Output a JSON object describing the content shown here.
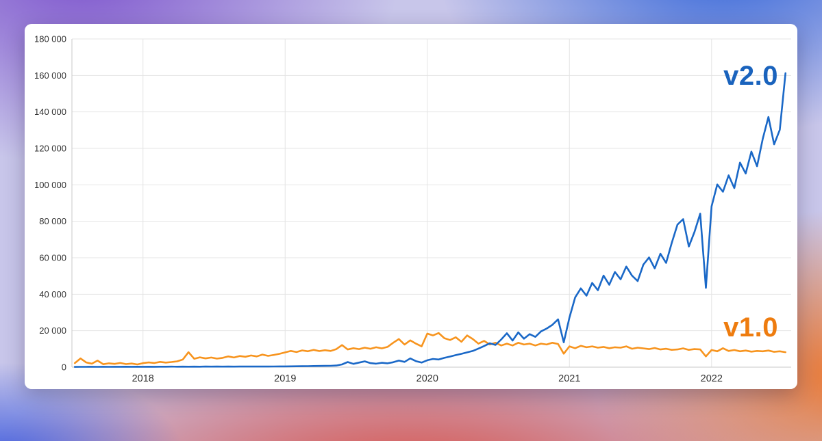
{
  "chart_data": {
    "type": "line",
    "xlabel": "",
    "ylabel": "",
    "xlim": [
      2017.5,
      2022.56
    ],
    "ylim": [
      0,
      180000
    ],
    "grid": true,
    "grid_color": "#e4e4e4",
    "axis_color": "#c9c9c9",
    "tick_color": "#333333",
    "legend_position": "inline-annotations",
    "x_start": 2017.52,
    "x_step": 0.04,
    "x_ticks": [
      {
        "value": 2018,
        "label": "2018"
      },
      {
        "value": 2019,
        "label": "2019"
      },
      {
        "value": 2020,
        "label": "2020"
      },
      {
        "value": 2021,
        "label": "2021"
      },
      {
        "value": 2022,
        "label": "2022"
      }
    ],
    "y_ticks": [
      {
        "value": 0,
        "label": "0"
      },
      {
        "value": 20000,
        "label": "20 000"
      },
      {
        "value": 40000,
        "label": "40 000"
      },
      {
        "value": 60000,
        "label": "60 000"
      },
      {
        "value": 80000,
        "label": "80 000"
      },
      {
        "value": 100000,
        "label": "100 000"
      },
      {
        "value": 120000,
        "label": "120 000"
      },
      {
        "value": 140000,
        "label": "140 000"
      },
      {
        "value": 160000,
        "label": "160 000"
      },
      {
        "value": 180000,
        "label": "180 000"
      }
    ],
    "series": [
      {
        "name": "v2.0",
        "color": "#1a68c7",
        "values": [
          150,
          200,
          180,
          220,
          190,
          230,
          200,
          240,
          210,
          250,
          220,
          260,
          230,
          270,
          240,
          280,
          250,
          290,
          260,
          300,
          270,
          310,
          280,
          320,
          290,
          330,
          300,
          340,
          310,
          350,
          320,
          360,
          330,
          370,
          340,
          380,
          400,
          430,
          460,
          500,
          540,
          580,
          620,
          660,
          700,
          750,
          900,
          1500,
          2800,
          1800,
          2500,
          3200,
          2200,
          1900,
          2400,
          2100,
          2700,
          3600,
          2900,
          4800,
          3300,
          2500,
          3800,
          4500,
          4200,
          5100,
          5800,
          6600,
          7300,
          8100,
          8900,
          10200,
          11600,
          13100,
          12200,
          15200,
          18600,
          14600,
          19100,
          15600,
          18100,
          16600,
          19600,
          21200,
          23200,
          26200,
          13600,
          27200,
          38200,
          43200,
          39200,
          46200,
          42200,
          50200,
          45200,
          52200,
          48200,
          55200,
          50200,
          47200,
          56200,
          60200,
          54200,
          62200,
          57200,
          68200,
          78200,
          81200,
          66200,
          74200,
          84200,
          43500,
          88200,
          100200,
          96200,
          105200,
          98200,
          112200,
          106200,
          118200,
          110200,
          125200,
          137200,
          122200,
          130200,
          161200
        ]
      },
      {
        "name": "v1.0",
        "color": "#f7941e",
        "values": [
          2200,
          4800,
          2600,
          1900,
          3600,
          1600,
          2100,
          1800,
          2300,
          1700,
          2000,
          1500,
          2200,
          2600,
          2300,
          2900,
          2500,
          2800,
          3200,
          4200,
          8200,
          4600,
          5400,
          4800,
          5300,
          4700,
          5100,
          5900,
          5300,
          6100,
          5700,
          6400,
          5900,
          6900,
          6200,
          6700,
          7300,
          8100,
          8900,
          8300,
          9200,
          8700,
          9500,
          8800,
          9300,
          8900,
          9900,
          12100,
          9700,
          10400,
          9900,
          10700,
          10100,
          10900,
          10300,
          11100,
          13400,
          15400,
          12400,
          14700,
          12900,
          11400,
          18400,
          17400,
          18700,
          15900,
          14900,
          16400,
          13900,
          17400,
          15400,
          12900,
          14400,
          12400,
          13400,
          11900,
          12900,
          11900,
          13400,
          12400,
          12900,
          11900,
          12900,
          12400,
          13400,
          12700,
          7400,
          11400,
          10400,
          11700,
          10900,
          11400,
          10700,
          11100,
          10400,
          10900,
          10700,
          11400,
          10100,
          10700,
          10300,
          9900,
          10500,
          9700,
          10100,
          9500,
          9700,
          10300,
          9500,
          9900,
          9700,
          5900,
          9400,
          8700,
          10400,
          8900,
          9400,
          8700,
          9100,
          8500,
          8900,
          8700,
          9100,
          8400,
          8700,
          8200
        ]
      }
    ],
    "annotations": [
      {
        "text": "v2.0",
        "color": "#1a63bd"
      },
      {
        "text": "v1.0",
        "color": "#ee7c0f"
      }
    ]
  }
}
